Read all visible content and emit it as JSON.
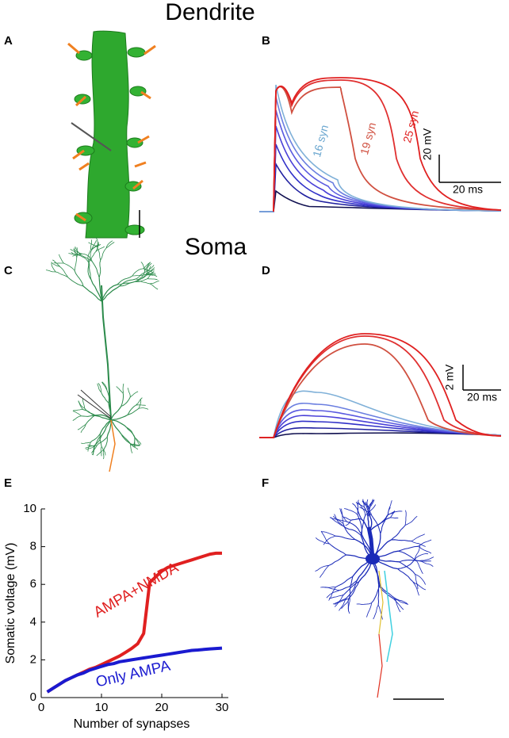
{
  "headings": {
    "dendrite": "Dendrite",
    "soma": "Soma"
  },
  "panel_labels": [
    "A",
    "B",
    "C",
    "D",
    "E",
    "F"
  ],
  "panel_b": {
    "scale_y": "20 mV",
    "scale_x": "20 ms",
    "trace_labels": [
      "16 syn",
      "19 syn",
      "25 syn"
    ]
  },
  "panel_d": {
    "scale_y": "2 mV",
    "scale_x": "20 ms"
  },
  "chart_data": {
    "type": "line",
    "x_label": "Number of synapses",
    "y_label": "Somatic voltage (mV)",
    "x": [
      1,
      2,
      3,
      4,
      5,
      6,
      7,
      8,
      9,
      10,
      11,
      12,
      13,
      14,
      15,
      16,
      17,
      18,
      19,
      20,
      21,
      22,
      23,
      24,
      25,
      26,
      27,
      28,
      29,
      30
    ],
    "series": [
      {
        "name": "AMPA+NMDA",
        "color": "#e02020",
        "values": [
          0.3,
          0.5,
          0.7,
          0.9,
          1.05,
          1.2,
          1.35,
          1.5,
          1.6,
          1.75,
          1.9,
          2.05,
          2.2,
          2.4,
          2.6,
          2.85,
          3.4,
          6.1,
          6.4,
          6.7,
          6.9,
          7.0,
          7.1,
          7.2,
          7.3,
          7.4,
          7.5,
          7.6,
          7.65,
          7.65
        ]
      },
      {
        "name": "Only AMPA",
        "color": "#1a1ad0",
        "values": [
          0.3,
          0.5,
          0.7,
          0.9,
          1.05,
          1.2,
          1.3,
          1.45,
          1.55,
          1.65,
          1.75,
          1.8,
          1.9,
          1.95,
          2.0,
          2.05,
          2.1,
          2.15,
          2.2,
          2.25,
          2.3,
          2.35,
          2.4,
          2.45,
          2.5,
          2.52,
          2.55,
          2.58,
          2.6,
          2.62
        ]
      }
    ],
    "xlim": [
      0,
      30
    ],
    "ylim": [
      0,
      10
    ],
    "xticks": [
      0,
      10,
      20,
      30
    ],
    "yticks": [
      0,
      2,
      4,
      6,
      8,
      10
    ]
  }
}
